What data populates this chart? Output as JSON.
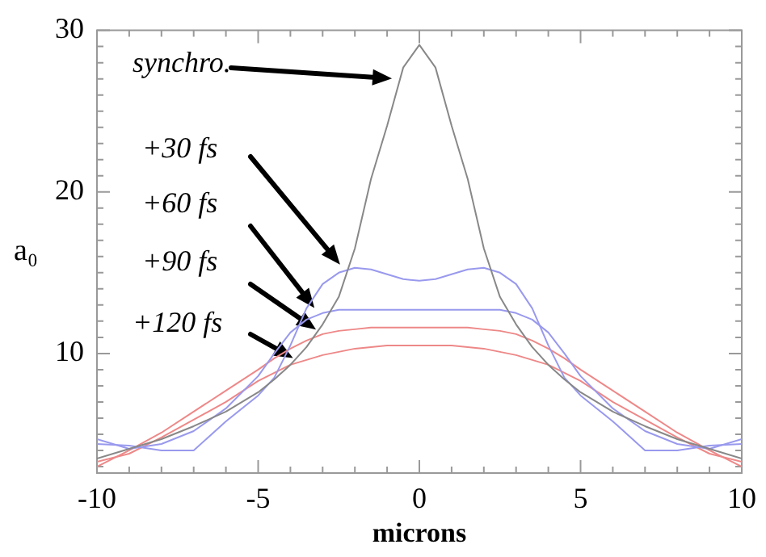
{
  "chart_data": {
    "type": "line",
    "xlabel": "microns",
    "ylabel": "a₀",
    "x": [
      -10,
      -9,
      -8,
      -7,
      -6,
      -5,
      -4.5,
      -4,
      -3.5,
      -3,
      -2.5,
      -2,
      -1.5,
      -1,
      -0.5,
      0,
      0.5,
      1,
      1.5,
      2,
      2.5,
      3,
      3.5,
      4,
      4.5,
      5,
      6,
      7,
      8,
      9,
      10
    ],
    "series": [
      {
        "name": "synchro.",
        "color": "#888888",
        "values": [
          3.5,
          4.1,
          4.7,
          5.5,
          6.4,
          7.6,
          8.4,
          9.3,
          10.4,
          11.8,
          13.5,
          16.5,
          20.8,
          24.1,
          27.7,
          29.1,
          27.7,
          24.1,
          20.8,
          16.5,
          13.5,
          11.8,
          10.4,
          9.3,
          8.4,
          7.6,
          6.4,
          5.5,
          4.7,
          4.1,
          3.5
        ]
      },
      {
        "name": "+30 fs",
        "color": "#9999ee",
        "values": [
          4.4,
          4.3,
          4.0,
          4.0,
          5.8,
          7.4,
          8.5,
          10.5,
          12.8,
          14.3,
          15.0,
          15.3,
          15.2,
          14.9,
          14.6,
          14.5,
          14.6,
          14.9,
          15.2,
          15.3,
          15.0,
          14.3,
          12.8,
          10.5,
          8.5,
          7.4,
          5.8,
          4.0,
          4.0,
          4.3,
          4.4
        ]
      },
      {
        "name": "+60 fs",
        "color": "#9999ee",
        "values": [
          4.7,
          4.1,
          4.4,
          5.2,
          6.6,
          8.6,
          10.0,
          11.3,
          12.1,
          12.5,
          12.7,
          12.7,
          12.7,
          12.7,
          12.7,
          12.7,
          12.7,
          12.7,
          12.7,
          12.7,
          12.7,
          12.5,
          12.1,
          11.3,
          10.0,
          8.6,
          6.6,
          5.2,
          4.4,
          4.1,
          4.7
        ]
      },
      {
        "name": "+90 fs",
        "color": "#ee8888",
        "values": [
          3.0,
          4.0,
          5.1,
          6.4,
          7.7,
          9.0,
          9.7,
          10.3,
          10.8,
          11.2,
          11.4,
          11.5,
          11.6,
          11.6,
          11.6,
          11.6,
          11.6,
          11.6,
          11.6,
          11.5,
          11.4,
          11.2,
          10.8,
          10.3,
          9.7,
          9.0,
          7.7,
          6.4,
          5.1,
          4.0,
          3.0
        ]
      },
      {
        "name": "+120 fs",
        "color": "#ee8888",
        "values": [
          3.3,
          3.8,
          4.8,
          5.9,
          7.0,
          8.3,
          8.8,
          9.3,
          9.6,
          9.9,
          10.1,
          10.3,
          10.4,
          10.5,
          10.5,
          10.5,
          10.5,
          10.5,
          10.4,
          10.3,
          10.1,
          9.9,
          9.6,
          9.3,
          8.8,
          8.3,
          7.0,
          5.9,
          4.8,
          3.8,
          3.3
        ]
      }
    ],
    "xlim": [
      -10,
      10
    ],
    "xticks": [
      -10,
      {
        "value": -9,
        "label": null
      },
      {
        "value": -8,
        "label": null
      },
      {
        "value": -7,
        "label": null
      },
      {
        "value": -6,
        "label": null
      },
      -5,
      {
        "value": -4,
        "label": null
      },
      {
        "value": -3,
        "label": null
      },
      {
        "value": -2,
        "label": null
      },
      {
        "value": -1,
        "label": null
      },
      0,
      {
        "value": 1,
        "label": null
      },
      {
        "value": 2,
        "label": null
      },
      {
        "value": 3,
        "label": null
      },
      {
        "value": 4,
        "label": null
      },
      5,
      {
        "value": 6,
        "label": null
      },
      {
        "value": 7,
        "label": null
      },
      {
        "value": 8,
        "label": null
      },
      {
        "value": 9,
        "label": null
      },
      10
    ],
    "ylim": [
      2.6,
      30
    ],
    "yticks": [
      {
        "value": 3,
        "label": null
      },
      {
        "value": 4,
        "label": null
      },
      {
        "value": 5,
        "label": null
      },
      {
        "value": 6,
        "label": null
      },
      {
        "value": 7,
        "label": null
      },
      {
        "value": 8,
        "label": null
      },
      {
        "value": 9,
        "label": null
      },
      10,
      {
        "value": 11,
        "label": null
      },
      {
        "value": 12,
        "label": null
      },
      {
        "value": 13,
        "label": null
      },
      {
        "value": 14,
        "label": null
      },
      {
        "value": 15,
        "label": null
      },
      {
        "value": 16,
        "label": null
      },
      {
        "value": 17,
        "label": null
      },
      {
        "value": 18,
        "label": null
      },
      {
        "value": 19,
        "label": null
      },
      20,
      {
        "value": 21,
        "label": null
      },
      {
        "value": 22,
        "label": null
      },
      {
        "value": 23,
        "label": null
      },
      {
        "value": 24,
        "label": null
      },
      {
        "value": 25,
        "label": null
      },
      {
        "value": 26,
        "label": null
      },
      {
        "value": 27,
        "label": null
      },
      {
        "value": 28,
        "label": null
      },
      {
        "value": 29,
        "label": null
      },
      30
    ],
    "grid": false,
    "legend": false,
    "marker": "none",
    "line_style": "solid"
  }
}
